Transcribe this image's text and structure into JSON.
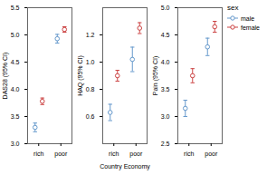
{
  "chart_data": [
    {
      "type": "errorbar",
      "ylabel": "DAS28 (95% CI)",
      "categories": [
        "rich",
        "poor"
      ],
      "series": [
        {
          "name": "male",
          "color": "#6699CC",
          "values": [
            3.3,
            4.93
          ],
          "ci_low": [
            3.22,
            4.85
          ],
          "ci_high": [
            3.38,
            5.01
          ]
        },
        {
          "name": "female",
          "color": "#CC4444",
          "values": [
            3.78,
            5.1
          ],
          "ci_low": [
            3.72,
            5.05
          ],
          "ci_high": [
            3.84,
            5.15
          ]
        }
      ],
      "ylim": [
        3.0,
        5.5
      ],
      "yticks": [
        {
          "value": 3,
          "label": "3.0"
        },
        3.5,
        {
          "value": 4,
          "label": "4.0"
        },
        4.5,
        {
          "value": 5,
          "label": "5.0"
        },
        5.5
      ],
      "grid": false
    },
    {
      "type": "errorbar",
      "ylabel": "HAQ (95% CI)",
      "xlabel": "Country Economy",
      "categories": [
        "rich",
        "poor"
      ],
      "series": [
        {
          "name": "male",
          "color": "#6699CC",
          "values": [
            0.63,
            1.02
          ],
          "ci_low": [
            0.57,
            0.93
          ],
          "ci_high": [
            0.69,
            1.11
          ]
        },
        {
          "name": "female",
          "color": "#CC4444",
          "values": [
            0.9,
            1.25
          ],
          "ci_low": [
            0.86,
            1.21
          ],
          "ci_high": [
            0.94,
            1.29
          ]
        }
      ],
      "ylim": [
        0.4,
        1.4
      ],
      "yticks": [
        0.6,
        0.8,
        {
          "value": 1,
          "label": "1.0"
        },
        1.2
      ],
      "grid": false
    },
    {
      "type": "errorbar",
      "ylabel": "Pain (95% CI)",
      "categories": [
        "rich",
        "poor"
      ],
      "series": [
        {
          "name": "male",
          "color": "#6699CC",
          "values": [
            3.15,
            4.28
          ],
          "ci_low": [
            3.0,
            4.12
          ],
          "ci_high": [
            3.3,
            4.44
          ]
        },
        {
          "name": "female",
          "color": "#CC4444",
          "values": [
            3.75,
            4.65
          ],
          "ci_low": [
            3.62,
            4.55
          ],
          "ci_high": [
            3.88,
            4.75
          ]
        }
      ],
      "ylim": [
        2.5,
        5.0
      ],
      "yticks": [
        2.5,
        {
          "value": 3,
          "label": "3.0"
        },
        3.5,
        {
          "value": 4,
          "label": "4.0"
        },
        4.5,
        {
          "value": 5,
          "label": "5.0"
        }
      ],
      "grid": false,
      "legend": "right",
      "legend_title": "sex"
    }
  ]
}
